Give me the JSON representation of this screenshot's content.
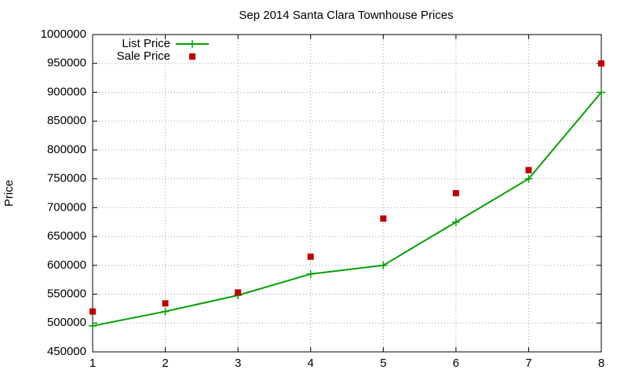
{
  "chart_data": {
    "type": "line",
    "title": "Sep 2014 Santa Clara Townhouse Prices",
    "y_label": "Price",
    "x": [
      1,
      2,
      3,
      4,
      5,
      6,
      7,
      8
    ],
    "series": [
      {
        "name": "List Price",
        "color": "#00a000",
        "style": "linespoints",
        "values": [
          495000,
          520000,
          548000,
          585000,
          600000,
          675000,
          750000,
          900000
        ]
      },
      {
        "name": "Sale Price",
        "color": "#c00000",
        "style": "points",
        "values": [
          520000,
          534000,
          553000,
          615000,
          681000,
          725000,
          765000,
          950000
        ]
      }
    ],
    "xlim": [
      1,
      8
    ],
    "xticks": [
      1,
      2,
      3,
      4,
      5,
      6,
      7,
      8
    ],
    "ylim": [
      450000,
      1000000
    ],
    "yticks": [
      450000,
      500000,
      550000,
      600000,
      650000,
      700000,
      750000,
      800000,
      850000,
      900000,
      950000,
      1000000
    ],
    "grid": true,
    "legend": "top-left"
  }
}
